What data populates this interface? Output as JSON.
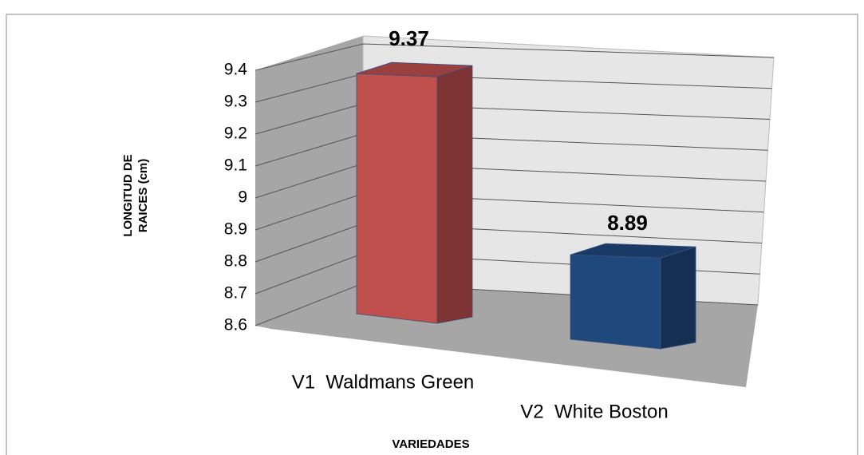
{
  "chart_data": {
    "type": "bar3d",
    "categories": [
      "V1  Waldmans Green",
      "V2  White Boston"
    ],
    "values": [
      9.37,
      8.89
    ],
    "colors": [
      "#c0504d",
      "#1f497d"
    ],
    "ylim": [
      8.6,
      9.4
    ],
    "yticks": [
      8.6,
      8.7,
      8.8,
      8.9,
      9,
      9.1,
      9.2,
      9.3,
      9.4
    ],
    "grid": true,
    "ylabel": [
      "LONGITUD DE",
      "RAICES (cm)"
    ],
    "xlabel": "VARIEDADES"
  }
}
